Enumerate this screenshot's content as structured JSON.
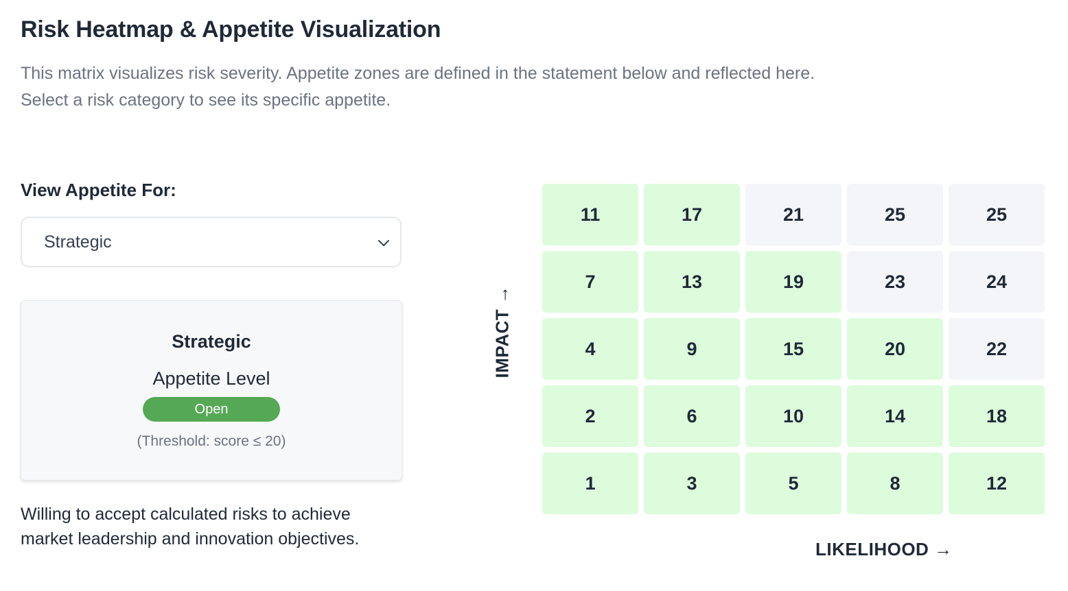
{
  "header": {
    "title": "Risk Heatmap & Appetite Visualization",
    "description_line1": "This matrix visualizes risk severity. Appetite zones are defined in the statement below and reflected here.",
    "description_line2": "Select a risk category to see its specific appetite."
  },
  "selector": {
    "label": "View Appetite For:",
    "selected": "Strategic",
    "icon": "chevron-down-icon"
  },
  "appetite_card": {
    "category": "Strategic",
    "level_label": "Appetite Level",
    "level": "Open",
    "threshold_text": "(Threshold: score ≤ 20)"
  },
  "statement": "Willing to accept calculated risks to achieve market leadership and innovation objectives.",
  "heatmap": {
    "y_axis_label": "IMPACT →",
    "x_axis_label": "LIKELIHOOD →",
    "colors": {
      "within_appetite": "#dcfcdc",
      "outside_appetite": "#f4f5f8",
      "badge": "#55a854"
    },
    "rows": [
      [
        {
          "score": "11",
          "within": true
        },
        {
          "score": "17",
          "within": true
        },
        {
          "score": "21",
          "within": false
        },
        {
          "score": "25",
          "within": false
        },
        {
          "score": "25",
          "within": false
        }
      ],
      [
        {
          "score": "7",
          "within": true
        },
        {
          "score": "13",
          "within": true
        },
        {
          "score": "19",
          "within": true
        },
        {
          "score": "23",
          "within": false
        },
        {
          "score": "24",
          "within": false
        }
      ],
      [
        {
          "score": "4",
          "within": true
        },
        {
          "score": "9",
          "within": true
        },
        {
          "score": "15",
          "within": true
        },
        {
          "score": "20",
          "within": true
        },
        {
          "score": "22",
          "within": false
        }
      ],
      [
        {
          "score": "2",
          "within": true
        },
        {
          "score": "6",
          "within": true
        },
        {
          "score": "10",
          "within": true
        },
        {
          "score": "14",
          "within": true
        },
        {
          "score": "18",
          "within": true
        }
      ],
      [
        {
          "score": "1",
          "within": true
        },
        {
          "score": "3",
          "within": true
        },
        {
          "score": "5",
          "within": true
        },
        {
          "score": "8",
          "within": true
        },
        {
          "score": "12",
          "within": true
        }
      ]
    ]
  }
}
